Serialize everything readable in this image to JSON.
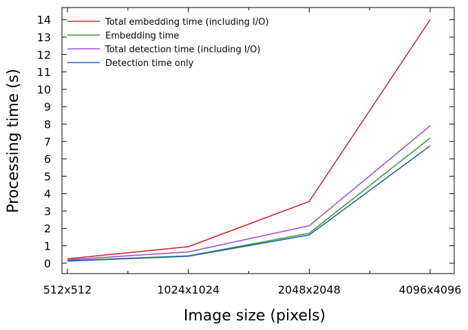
{
  "chart_data": {
    "type": "line",
    "title": "",
    "xlabel": "Image size (pixels)",
    "ylabel": "Processing time (s)",
    "categories": [
      "512x512",
      "1024x1024",
      "2048x2048",
      "4096x4096"
    ],
    "ylim": [
      -0.6,
      14.7
    ],
    "yticks": [
      0,
      1,
      2,
      3,
      4,
      5,
      6,
      7,
      8,
      9,
      10,
      11,
      12,
      13,
      14
    ],
    "grid": false,
    "legend_position": "top-left",
    "series": [
      {
        "name": "Total embedding time (including I/O)",
        "color": "#d62728",
        "values": [
          0.25,
          0.95,
          3.55,
          14.0
        ]
      },
      {
        "name": "Embedding time",
        "color": "#3a9a3a",
        "values": [
          0.15,
          0.42,
          1.72,
          7.2
        ]
      },
      {
        "name": "Total detection time (including I/O)",
        "color": "#a050d0",
        "values": [
          0.2,
          0.65,
          2.15,
          7.9
        ]
      },
      {
        "name": "Detection time only",
        "color": "#1f5fb0",
        "values": [
          0.12,
          0.4,
          1.62,
          6.75
        ]
      }
    ]
  }
}
